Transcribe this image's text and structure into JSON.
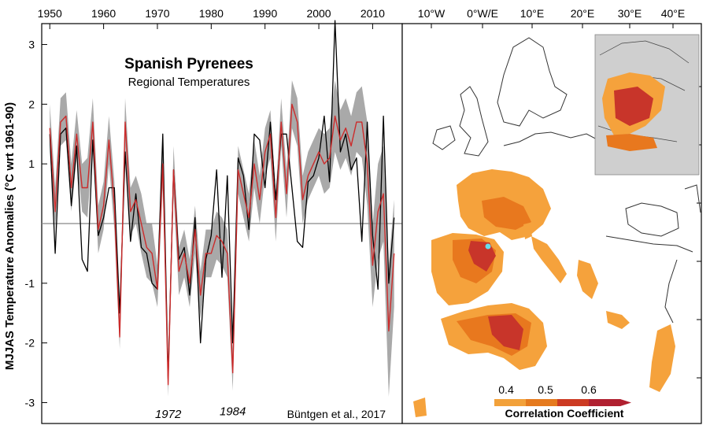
{
  "chart_data": {
    "type": "line",
    "title": "Spanish Pyrenees",
    "subtitle": "Regional Temperatures",
    "ylabel": "MJJAS Temperature Anomalies (°C wrt 1961-90)",
    "xlabel": "",
    "xlim": [
      1948.5,
      2015.5
    ],
    "ylim": [
      -3.35,
      3.35
    ],
    "x_ticks": [
      1950,
      1960,
      1970,
      1980,
      1990,
      2000,
      2010
    ],
    "y_ticks": [
      -3,
      -2,
      -1,
      1,
      2,
      3
    ],
    "zero_line": true,
    "annotations": [
      {
        "text": "1972",
        "x": 1972,
        "y": -3.1
      },
      {
        "text": "1984",
        "x": 1984,
        "y": -3.05
      }
    ],
    "credit": "Büntgen et al., 2017",
    "x": [
      1950,
      1951,
      1952,
      1953,
      1954,
      1955,
      1956,
      1957,
      1958,
      1959,
      1960,
      1961,
      1962,
      1963,
      1964,
      1965,
      1966,
      1967,
      1968,
      1969,
      1970,
      1971,
      1972,
      1973,
      1974,
      1975,
      1976,
      1977,
      1978,
      1979,
      1980,
      1981,
      1982,
      1983,
      1984,
      1985,
      1986,
      1987,
      1988,
      1989,
      1990,
      1991,
      1992,
      1993,
      1994,
      1995,
      1996,
      1997,
      1998,
      1999,
      2000,
      2001,
      2002,
      2003,
      2004,
      2005,
      2006,
      2007,
      2008,
      2009,
      2010,
      2011,
      2012,
      2013,
      2014
    ],
    "series": [
      {
        "name": "",
        "color": "#000000",
        "values": [
          1.5,
          -0.5,
          1.5,
          1.6,
          0.3,
          1.3,
          -0.6,
          -0.8,
          1.4,
          -0.2,
          0.1,
          0.6,
          0.6,
          -1.5,
          1.2,
          -0.3,
          0.5,
          -0.4,
          -0.5,
          -1.0,
          -1.1,
          1.5,
          -2.6,
          0.9,
          -0.6,
          -0.4,
          -1.2,
          0.1,
          -2.0,
          -0.6,
          -0.2,
          0.9,
          -0.9,
          0.8,
          -2.0,
          1.1,
          0.8,
          -0.1,
          1.5,
          1.4,
          0.6,
          1.7,
          0.4,
          1.5,
          1.5,
          0.6,
          -0.3,
          -0.4,
          0.7,
          0.8,
          1.1,
          1.8,
          0.7,
          3.4,
          1.2,
          1.5,
          0.9,
          1.1,
          -0.3,
          1.7,
          -0.2,
          -1.1,
          1.8,
          -1.0,
          0.1
        ]
      },
      {
        "name": "",
        "color": "#cc2b2b",
        "values": [
          1.6,
          0.2,
          1.7,
          1.8,
          0.6,
          1.5,
          0.6,
          0.6,
          1.7,
          -0.1,
          0.3,
          1.4,
          0.3,
          -1.9,
          1.7,
          0.2,
          0.4,
          0.0,
          -0.4,
          -0.5,
          -1.1,
          1.0,
          -2.7,
          0.9,
          -0.8,
          -0.5,
          -1.0,
          -0.1,
          -1.2,
          -0.5,
          -0.5,
          -0.2,
          -0.3,
          -0.5,
          -2.5,
          0.9,
          0.5,
          0.1,
          1.0,
          0.4,
          1.2,
          1.5,
          0.1,
          1.7,
          0.5,
          2.0,
          1.7,
          0.4,
          0.8,
          1.0,
          1.2,
          1.0,
          1.1,
          1.8,
          1.4,
          1.6,
          1.3,
          1.7,
          1.7,
          1.0,
          -0.7,
          0.2,
          0.5,
          -1.8,
          -0.5
        ]
      }
    ],
    "band": {
      "color": "#a9a9a9",
      "lower": [
        1.2,
        -0.1,
        1.3,
        1.4,
        0.2,
        1.1,
        0.2,
        0.1,
        1.3,
        -0.5,
        -0.1,
        1.0,
        -0.1,
        -2.1,
        1.3,
        -0.2,
        0.0,
        -0.5,
        -0.9,
        -1.0,
        -1.4,
        0.6,
        -2.9,
        0.5,
        -1.2,
        -0.9,
        -1.4,
        -0.5,
        -1.6,
        -0.9,
        -0.9,
        -0.6,
        -0.7,
        -0.9,
        -2.8,
        0.5,
        0.1,
        -0.3,
        0.6,
        0.0,
        0.8,
        1.1,
        -0.3,
        1.3,
        0.1,
        1.6,
        1.3,
        0.0,
        0.4,
        0.6,
        0.8,
        0.5,
        0.6,
        1.2,
        0.9,
        1.1,
        0.8,
        1.2,
        1.1,
        0.3,
        -1.4,
        -0.6,
        -0.3,
        -2.9,
        -1.4
      ],
      "upper": [
        2.0,
        0.6,
        2.1,
        2.2,
        1.0,
        1.9,
        1.0,
        1.1,
        2.1,
        0.3,
        0.7,
        1.8,
        0.7,
        -1.6,
        2.1,
        0.6,
        0.8,
        0.5,
        0.0,
        0.0,
        -0.7,
        1.4,
        -2.4,
        1.3,
        -0.4,
        -0.1,
        -0.6,
        0.3,
        -0.8,
        -0.1,
        -0.1,
        0.2,
        0.1,
        -0.1,
        -2.1,
        1.3,
        0.9,
        0.5,
        1.4,
        0.8,
        1.6,
        1.9,
        0.5,
        2.1,
        0.9,
        2.4,
        2.1,
        0.8,
        1.2,
        1.4,
        1.6,
        1.5,
        1.6,
        2.4,
        1.9,
        2.1,
        1.8,
        2.2,
        2.3,
        1.7,
        0.0,
        1.0,
        1.3,
        -0.7,
        0.4
      ]
    }
  },
  "map": {
    "lon_ticks": [
      "10°W",
      "0°W/E",
      "10°E",
      "20°E",
      "30°E",
      "40°E"
    ],
    "legend": {
      "title": "Correlation Coefficient",
      "ticks": [
        "0.4",
        "0.5",
        "0.6"
      ],
      "colors": [
        "#f2a13a",
        "#e57a1e",
        "#cc3a22",
        "#b02030"
      ]
    },
    "region_colors": {
      "low": "#f5a23c",
      "mid": "#e8781e",
      "high": "#c8352a",
      "inset_background": "#cfcfcf",
      "site_marker": "#66ddee"
    }
  }
}
